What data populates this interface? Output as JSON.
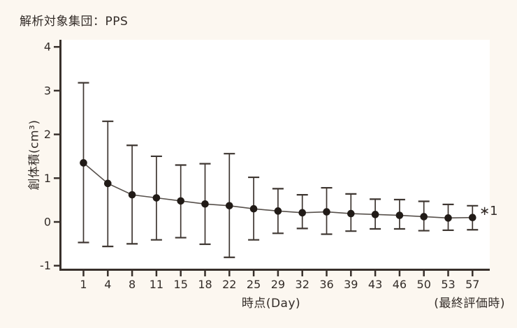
{
  "header": {
    "title": "解析対象集団：PPS"
  },
  "chart_data": {
    "type": "line",
    "title": "解析対象集団：PPS",
    "xlabel": "時点(Day)",
    "x_right_note": "(最終評価時)",
    "ylabel": "創体積(cm³)",
    "annotation": "∗1",
    "categories": [
      "1",
      "4",
      "8",
      "11",
      "15",
      "18",
      "22",
      "25",
      "29",
      "32",
      "36",
      "39",
      "43",
      "46",
      "50",
      "53",
      "57"
    ],
    "values": [
      1.35,
      0.88,
      0.62,
      0.55,
      0.48,
      0.41,
      0.37,
      0.3,
      0.25,
      0.21,
      0.23,
      0.19,
      0.17,
      0.15,
      0.12,
      0.09,
      0.1
    ],
    "error_upper": [
      3.18,
      2.3,
      1.75,
      1.5,
      1.3,
      1.33,
      1.56,
      1.02,
      0.76,
      0.62,
      0.78,
      0.64,
      0.52,
      0.51,
      0.47,
      0.4,
      0.37
    ],
    "error_lower": [
      -0.47,
      -0.56,
      -0.5,
      -0.41,
      -0.36,
      -0.51,
      -0.81,
      -0.41,
      -0.26,
      -0.15,
      -0.28,
      -0.21,
      -0.16,
      -0.16,
      -0.2,
      -0.19,
      -0.18
    ],
    "ylim": [
      -1,
      4
    ],
    "y_ticks": [
      4,
      3,
      2,
      1,
      0,
      -1
    ],
    "grid": false,
    "legend": "none",
    "marker": "filled-circle",
    "error_bar_caps": true,
    "colors": {
      "background": "#fcf7f0",
      "plot_background": "#ffffff",
      "axis": "#38302b",
      "text": "#332c28",
      "line": "#57504b",
      "error_bar": "#3e3631",
      "marker": "#211b17"
    }
  }
}
